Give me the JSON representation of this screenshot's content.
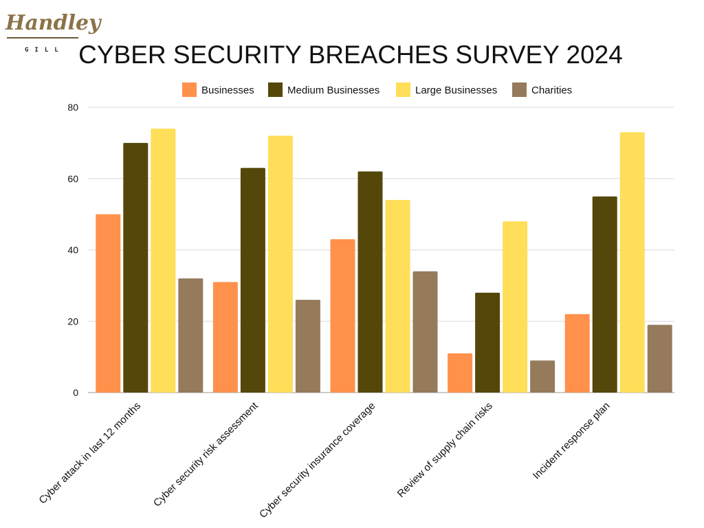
{
  "logo": {
    "script": "Handley",
    "sub": "GILL"
  },
  "colors": {
    "businesses": "#FF914D",
    "medium": "#544709",
    "large": "#FFDE59",
    "charities": "#957A5C",
    "grid": "#d9d9d9",
    "axis": "#999999",
    "text": "#111111"
  },
  "chart_data": {
    "type": "bar",
    "title": "CYBER SECURITY BREACHES SURVEY 2024",
    "xlabel": "",
    "ylabel": "",
    "ylim": [
      0,
      80
    ],
    "yticks": [
      0,
      20,
      40,
      60,
      80
    ],
    "legend_position": "top",
    "grid": true,
    "categories": [
      "Cyber attack in last 12 months",
      "Cyber security risk assessment",
      "Cyber security insurance coverage",
      "Review of supply chain risks",
      "Incident response plan"
    ],
    "series": [
      {
        "name": "Businesses",
        "color_key": "businesses",
        "values": [
          50,
          31,
          43,
          11,
          22
        ]
      },
      {
        "name": "Medium Businesses",
        "color_key": "medium",
        "values": [
          70,
          63,
          62,
          28,
          55
        ]
      },
      {
        "name": "Large Businesses",
        "color_key": "large",
        "values": [
          74,
          72,
          54,
          48,
          73
        ]
      },
      {
        "name": "Charities",
        "color_key": "charities",
        "values": [
          32,
          26,
          34,
          9,
          19
        ]
      }
    ]
  }
}
